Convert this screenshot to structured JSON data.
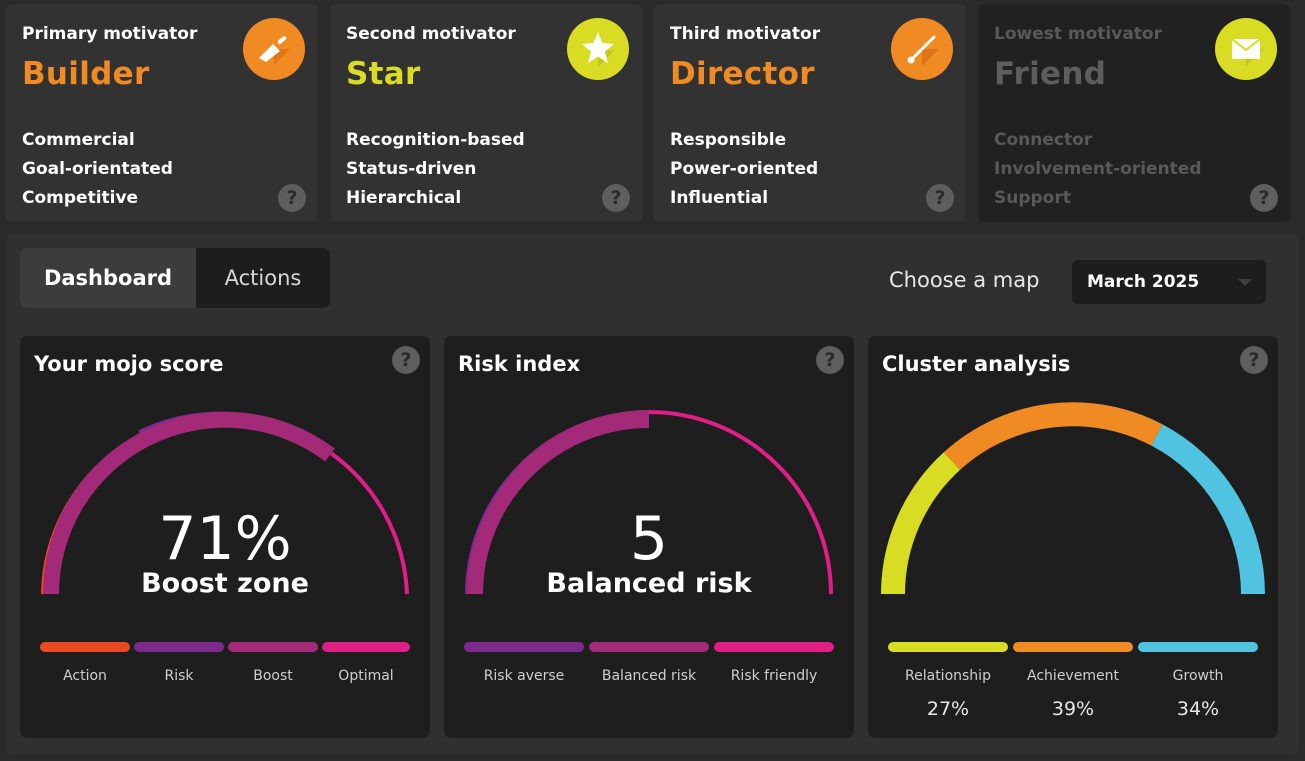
{
  "colors": {
    "orange": "#f08a22",
    "lime": "#d8dc22",
    "purple": "#7c2a8e",
    "magenta": "#a32a78",
    "pink": "#e01f86",
    "red": "#e94a22",
    "blue": "#4fc3e0"
  },
  "motivators": [
    {
      "eyebrow": "Primary motivator",
      "name": "Builder",
      "icon": "trowel-icon",
      "traits": [
        "Commercial",
        "Goal-orientated",
        "Competitive"
      ]
    },
    {
      "eyebrow": "Second motivator",
      "name": "Star",
      "icon": "star-icon",
      "traits": [
        "Recognition-based",
        "Status-driven",
        "Hierarchical"
      ]
    },
    {
      "eyebrow": "Third motivator",
      "name": "Director",
      "icon": "baton-icon",
      "traits": [
        "Responsible",
        "Power-oriented",
        "Influential"
      ]
    },
    {
      "eyebrow": "Lowest motivator",
      "name": "Friend",
      "icon": "envelope-icon",
      "traits": [
        "Connector",
        "Involvement-oriented",
        "Support"
      ]
    }
  ],
  "help_glyph": "?",
  "tabs": [
    {
      "label": "Dashboard",
      "active": true
    },
    {
      "label": "Actions",
      "active": false
    }
  ],
  "map_selector": {
    "label": "Choose a map",
    "value": "March 2025"
  },
  "mojo": {
    "title": "Your mojo score",
    "score": "71%",
    "score_value": 71,
    "zone": "Boost zone",
    "legend": [
      "Action",
      "Risk",
      "Boost",
      "Optimal"
    ]
  },
  "risk": {
    "title": "Risk index",
    "score": "5",
    "zone": "Balanced risk",
    "legend": [
      "Risk averse",
      "Balanced risk",
      "Risk friendly"
    ]
  },
  "cluster": {
    "title": "Cluster analysis",
    "items": [
      {
        "label": "Relationship",
        "percent": "27%",
        "value": 27
      },
      {
        "label": "Achievement",
        "percent": "39%",
        "value": 39
      },
      {
        "label": "Growth",
        "percent": "34%",
        "value": 34
      }
    ]
  }
}
